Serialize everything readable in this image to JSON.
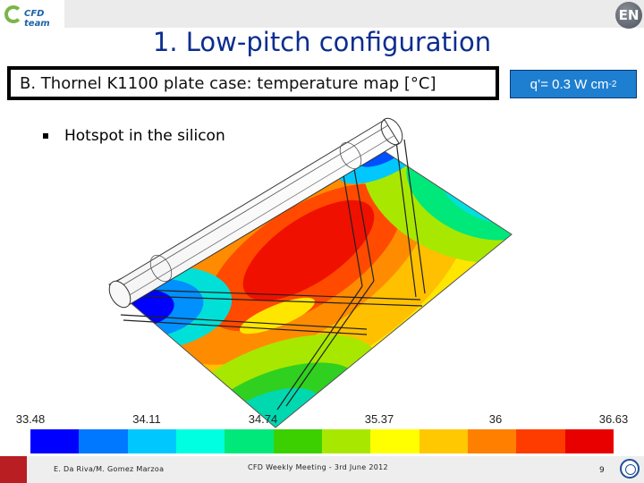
{
  "header": {
    "logo_text": "CFD team",
    "badge_text": "EN"
  },
  "slide": {
    "title": "1. Low-pitch configuration",
    "subtitle": "B. Thornel K1100 plate case: temperature map [°C]",
    "flux_label": "q’= 0.3 W cm",
    "flux_exponent": "-2",
    "bullet": "Hotspot in the silicon"
  },
  "colorscale": {
    "labels": [
      "33.48",
      "34.11",
      "34.74",
      "35.37",
      "36",
      "36.63"
    ],
    "colors": [
      "#0000ff",
      "#0078ff",
      "#00c8ff",
      "#00ffe0",
      "#00e87a",
      "#3cd000",
      "#a8e800",
      "#ffff00",
      "#ffc800",
      "#ff8000",
      "#ff3c00",
      "#e80000"
    ]
  },
  "footer": {
    "authors": "E. Da Riva/M. Gomez Marzoa",
    "meeting": "CFD Weekly Meeting - 3rd June 2012",
    "page_number": "9"
  }
}
